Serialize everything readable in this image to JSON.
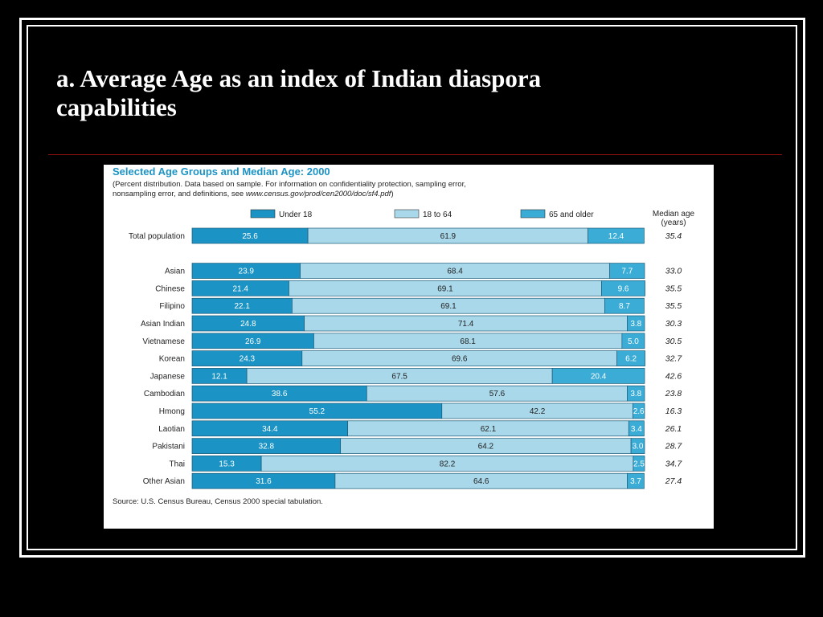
{
  "slide": {
    "title_line1": "a. Average Age as an index of Indian diaspora",
    "title_line2": "capabilities"
  },
  "chart_data": {
    "type": "bar",
    "stacked": true,
    "orientation": "horizontal",
    "title": "Selected Age Groups and Median Age: 2000",
    "subtitle_line1": "(Percent distribution.  Data based on sample.  For information on confidentiality protection, sampling error,",
    "subtitle_line2_prefix": "nonsampling error, and definitions, see ",
    "subtitle_line2_link": "www.census.gov/prod/cen2000/doc/sf4.pdf",
    "subtitle_line2_suffix": ")",
    "median_header_line1": "Median age",
    "median_header_line2": "(years)",
    "source": "Source: U.S. Census Bureau, Census 2000 special tabulation.",
    "xlim": [
      0,
      100
    ],
    "legend_placement": "top",
    "series": [
      {
        "name": "Under 18",
        "color": "#1b93c4",
        "label_color": "#ffffff"
      },
      {
        "name": "18 to 64",
        "color": "#a9d8ea",
        "label_color": "#222222"
      },
      {
        "name": "65 and older",
        "color": "#3aacd6",
        "label_color": "#ffffff"
      }
    ],
    "rows": [
      {
        "category": "Total population",
        "under18": "25.6",
        "age18to64": "61.9",
        "age65plus": "12.4",
        "median": "35.4",
        "group_gap_after": true
      },
      {
        "category": "Asian",
        "under18": "23.9",
        "age18to64": "68.4",
        "age65plus": "7.7",
        "median": "33.0"
      },
      {
        "category": "Chinese",
        "under18": "21.4",
        "age18to64": "69.1",
        "age65plus": "9.6",
        "median": "35.5"
      },
      {
        "category": "Filipino",
        "under18": "22.1",
        "age18to64": "69.1",
        "age65plus": "8.7",
        "median": "35.5"
      },
      {
        "category": "Asian Indian",
        "under18": "24.8",
        "age18to64": "71.4",
        "age65plus": "3.8",
        "median": "30.3"
      },
      {
        "category": "Vietnamese",
        "under18": "26.9",
        "age18to64": "68.1",
        "age65plus": "5.0",
        "median": "30.5"
      },
      {
        "category": "Korean",
        "under18": "24.3",
        "age18to64": "69.6",
        "age65plus": "6.2",
        "median": "32.7"
      },
      {
        "category": "Japanese",
        "under18": "12.1",
        "age18to64": "67.5",
        "age65plus": "20.4",
        "median": "42.6"
      },
      {
        "category": "Cambodian",
        "under18": "38.6",
        "age18to64": "57.6",
        "age65plus": "3.8",
        "median": "23.8"
      },
      {
        "category": "Hmong",
        "under18": "55.2",
        "age18to64": "42.2",
        "age65plus": "2.6",
        "median": "16.3"
      },
      {
        "category": "Laotian",
        "under18": "34.4",
        "age18to64": "62.1",
        "age65plus": "3.4",
        "median": "26.1"
      },
      {
        "category": "Pakistani",
        "under18": "32.8",
        "age18to64": "64.2",
        "age65plus": "3.0",
        "median": "28.7"
      },
      {
        "category": "Thai",
        "under18": "15.3",
        "age18to64": "82.2",
        "age65plus": "2.5",
        "median": "34.7"
      },
      {
        "category": "Other Asian",
        "under18": "31.6",
        "age18to64": "64.6",
        "age65plus": "3.7",
        "median": "27.4"
      }
    ]
  }
}
